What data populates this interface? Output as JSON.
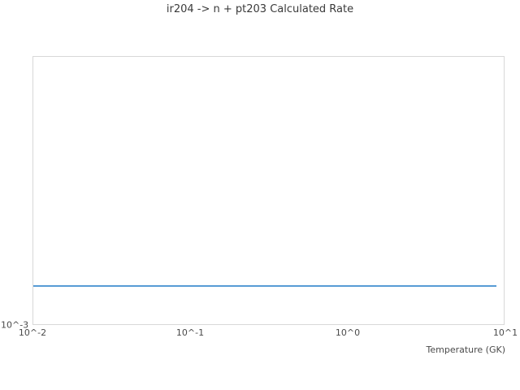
{
  "colors": {
    "background": "#ffffff",
    "title_color": "#3a3a3a",
    "tick_color": "#4a4a4a",
    "axis_border": "#d8d8d8",
    "line_color": "#579bd5"
  },
  "chart_data": {
    "type": "line",
    "title": "ir204 -> n + pt203 Calculated Rate",
    "xlabel": "Temperature (GK)",
    "ylabel": "",
    "x_scale": "log",
    "y_scale": "log",
    "xlim": [
      0.01,
      10
    ],
    "ylim": [
      0.001,
      0.1
    ],
    "grid": false,
    "legend": "none",
    "x_ticks": [
      {
        "value": 0.01,
        "label": "10^-2"
      },
      {
        "value": 0.1,
        "label": "10^-1"
      },
      {
        "value": 1,
        "label": "10^0"
      },
      {
        "value": 10,
        "label": "10^1"
      }
    ],
    "y_ticks": [
      {
        "value": 0.001,
        "label": "10^-3"
      }
    ],
    "series": [
      {
        "name": "calculated-rate",
        "x": [
          0.01,
          9.0
        ],
        "y": [
          0.00195,
          0.00195
        ],
        "shape": "constant-horizontal-line",
        "color": "#579bd5"
      }
    ]
  }
}
